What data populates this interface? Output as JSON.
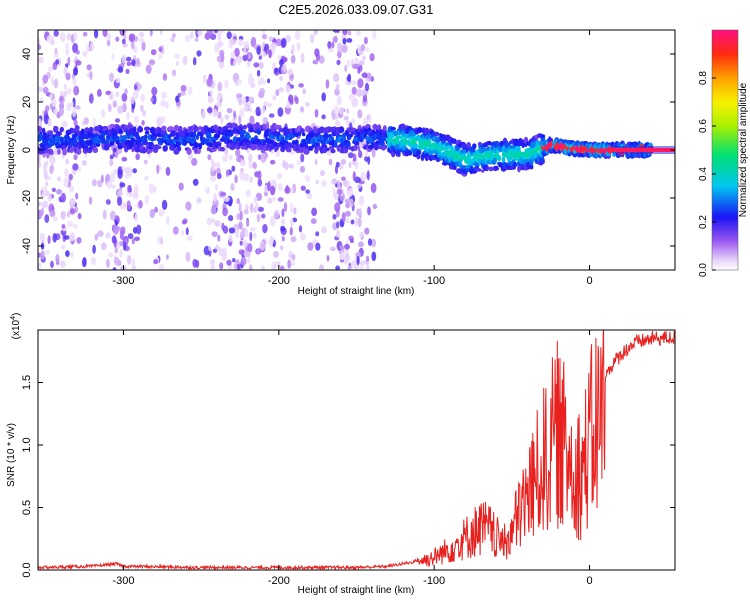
{
  "title": "C2E5.2026.033.09.07.G31",
  "chart_data": [
    {
      "type": "heatmap",
      "title": "C2E5.2026.033.09.07.G31",
      "xlabel": "Height of straight line (km)",
      "ylabel": "Frequency (Hz)",
      "xlim": [
        -355,
        55
      ],
      "ylim": [
        -50,
        50
      ],
      "xticks": [
        -300,
        -200,
        -100,
        0
      ],
      "xtick_labels": [
        "-300",
        "-200",
        "-100",
        "0"
      ],
      "yticks": [
        -40,
        -20,
        0,
        20,
        40
      ],
      "ytick_labels": [
        "-40",
        "-20",
        "0",
        "20",
        "40"
      ],
      "colorbar": {
        "label": "Normalized spectral amplitude",
        "range": [
          0,
          1
        ],
        "ticks": [
          0.0,
          0.2,
          0.4,
          0.6,
          0.8
        ],
        "tick_labels": [
          "0.0",
          "0.2",
          "0.4",
          "0.6",
          "0.8"
        ]
      },
      "ridge": {
        "x": [
          -340,
          -300,
          -260,
          -220,
          -180,
          -140,
          -120,
          -100,
          -80,
          -60,
          -40,
          -25,
          -15,
          0,
          15,
          30,
          55
        ],
        "y": [
          4,
          5,
          4,
          6,
          4,
          5,
          4,
          2,
          -4,
          -2,
          -2,
          2,
          1,
          0,
          0,
          0,
          0
        ]
      },
      "noise_region_x": [
        -355,
        -138
      ]
    },
    {
      "type": "line",
      "xlabel": "Height of straight line (km)",
      "ylabel": "SNR (10 * v/v)",
      "scale_label": "(x10",
      "scale_exponent": "4",
      "scale_suffix": ")",
      "xlim": [
        -355,
        55
      ],
      "ylim": [
        0,
        1.92
      ],
      "xticks": [
        -300,
        -200,
        -100,
        0
      ],
      "xtick_labels": [
        "-300",
        "-200",
        "-100",
        "0"
      ],
      "yticks": [
        0.0,
        0.5,
        1.0,
        1.5
      ],
      "ytick_labels": [
        "0.0",
        "0.5",
        "1.0",
        "1.5"
      ],
      "series": [
        {
          "name": "SNR",
          "color": "#e8201e",
          "x": [
            -355,
            -320,
            -305,
            -300,
            -250,
            -200,
            -150,
            -130,
            -115,
            -100,
            -90,
            -80,
            -75,
            -70,
            -65,
            -60,
            -55,
            -50,
            -45,
            -40,
            -35,
            -30,
            -25,
            -20,
            -15,
            -10,
            -5,
            0,
            5,
            10,
            15,
            20,
            25,
            30,
            40,
            55
          ],
          "y": [
            0.02,
            0.03,
            0.05,
            0.03,
            0.02,
            0.02,
            0.02,
            0.03,
            0.06,
            0.12,
            0.2,
            0.3,
            0.35,
            0.4,
            0.38,
            0.3,
            0.25,
            0.35,
            0.55,
            0.7,
            0.85,
            1.0,
            1.15,
            1.3,
            1.1,
            1.0,
            0.9,
            1.2,
            1.4,
            1.55,
            1.65,
            1.72,
            1.78,
            1.82,
            1.85,
            1.86
          ]
        }
      ]
    }
  ]
}
